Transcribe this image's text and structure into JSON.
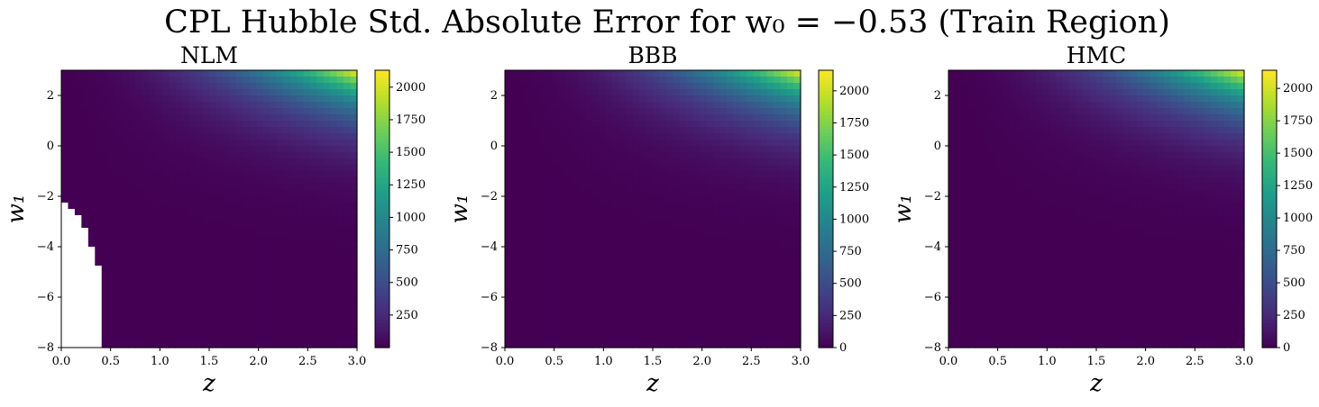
{
  "figure": {
    "title": "CPL Hubble Std. Absolute Error for w₀ = −0.53 (Train Region)"
  },
  "chart_data": [
    {
      "type": "heatmap",
      "title": "NLM",
      "xlabel": "z",
      "ylabel": "w₁",
      "xlim": [
        0.0,
        3.0
      ],
      "ylim": [
        -8,
        3
      ],
      "xticks": [
        "0.0",
        "0.5",
        "1.0",
        "1.5",
        "2.0",
        "2.5",
        "3.0"
      ],
      "yticks": [
        "−8",
        "−6",
        "−4",
        "−2",
        "0",
        "2"
      ],
      "colorbar": {
        "min": 0,
        "max": 2130,
        "ticks": [
          "250",
          "500",
          "750",
          "1000",
          "1250",
          "1500",
          "1750",
          "2000"
        ]
      },
      "colormap": "viridis",
      "max_value": 2130,
      "peak_location": "top-right (z = 3.0, w₁ = 3)",
      "missing_region": "white (no data) for z < ~0.4 at w₁ < ~−2.3",
      "grid": false
    },
    {
      "type": "heatmap",
      "title": "BBB",
      "xlabel": "z",
      "ylabel": "w₁",
      "xlim": [
        0.0,
        3.0
      ],
      "ylim": [
        -8,
        3
      ],
      "xticks": [
        "0.0",
        "0.5",
        "1.0",
        "1.5",
        "2.0",
        "2.5",
        "3.0"
      ],
      "yticks": [
        "−8",
        "−6",
        "−4",
        "−2",
        "0",
        "2"
      ],
      "colorbar": {
        "min": 0,
        "max": 2160,
        "ticks": [
          "0",
          "250",
          "500",
          "750",
          "1000",
          "1250",
          "1500",
          "1750",
          "2000"
        ]
      },
      "colormap": "viridis",
      "max_value": 2160,
      "peak_location": "top-right (z = 3.0, w₁ = 3)",
      "grid": false
    },
    {
      "type": "heatmap",
      "title": "HMC",
      "xlabel": "z",
      "ylabel": "w₁",
      "xlim": [
        0.0,
        3.0
      ],
      "ylim": [
        -8,
        3
      ],
      "xticks": [
        "0.0",
        "0.5",
        "1.0",
        "1.5",
        "2.0",
        "2.5",
        "3.0"
      ],
      "yticks": [
        "−8",
        "−6",
        "−4",
        "−2",
        "0",
        "2"
      ],
      "colorbar": {
        "min": 0,
        "max": 2140,
        "ticks": [
          "0",
          "250",
          "500",
          "750",
          "1000",
          "1250",
          "1500",
          "1750",
          "2000"
        ]
      },
      "colormap": "viridis",
      "max_value": 2140,
      "peak_location": "top-right (z = 3.0, w₁ = 3)",
      "grid": false
    }
  ]
}
